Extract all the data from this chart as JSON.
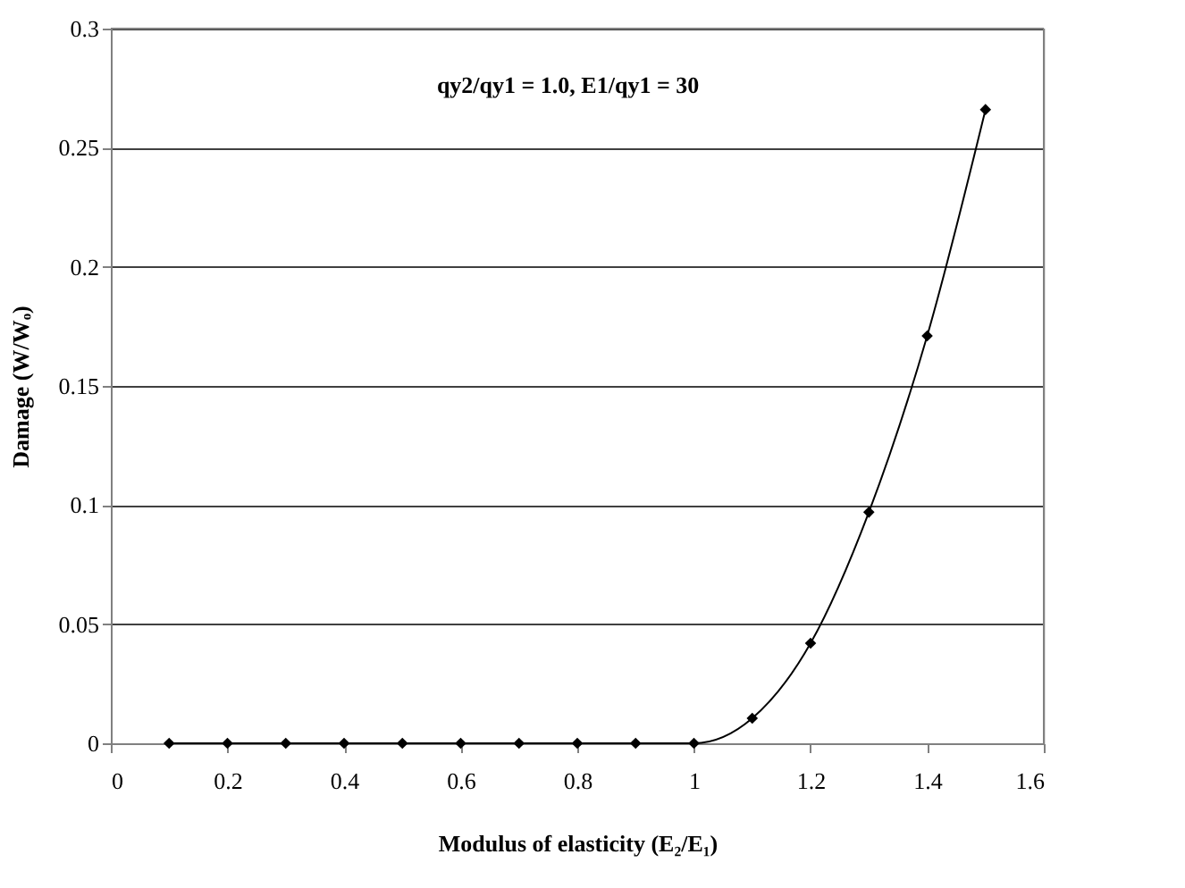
{
  "chart_data": {
    "type": "line",
    "xlabel": "Modulus of elasticity (E₂/E₁)",
    "ylabel": "Damage (W/Wₒ)",
    "annotations": [
      "qy2/qy1 = 1.0, E1/qy1 = 30"
    ],
    "x": [
      0.1,
      0.2,
      0.3,
      0.4,
      0.5,
      0.6,
      0.7,
      0.8,
      0.9,
      1.0,
      1.1,
      1.2,
      1.3,
      1.4,
      1.5
    ],
    "series": [
      {
        "color": "#000000",
        "values": [
          0,
          0,
          0,
          0,
          0,
          0,
          0,
          0,
          0,
          0,
          0.0105,
          0.042,
          0.097,
          0.171,
          0.266
        ]
      }
    ],
    "xlim": [
      0,
      1.6
    ],
    "xticks": [
      0,
      0.2,
      0.4,
      0.6,
      0.8,
      1,
      1.2,
      1.4,
      1.6
    ],
    "ylim": [
      0,
      0.3
    ],
    "yticks": [
      0,
      0.05,
      0.1,
      0.15,
      0.2,
      0.25,
      0.3
    ],
    "grid": "y",
    "marker": "diamond",
    "line_style": "solid"
  }
}
